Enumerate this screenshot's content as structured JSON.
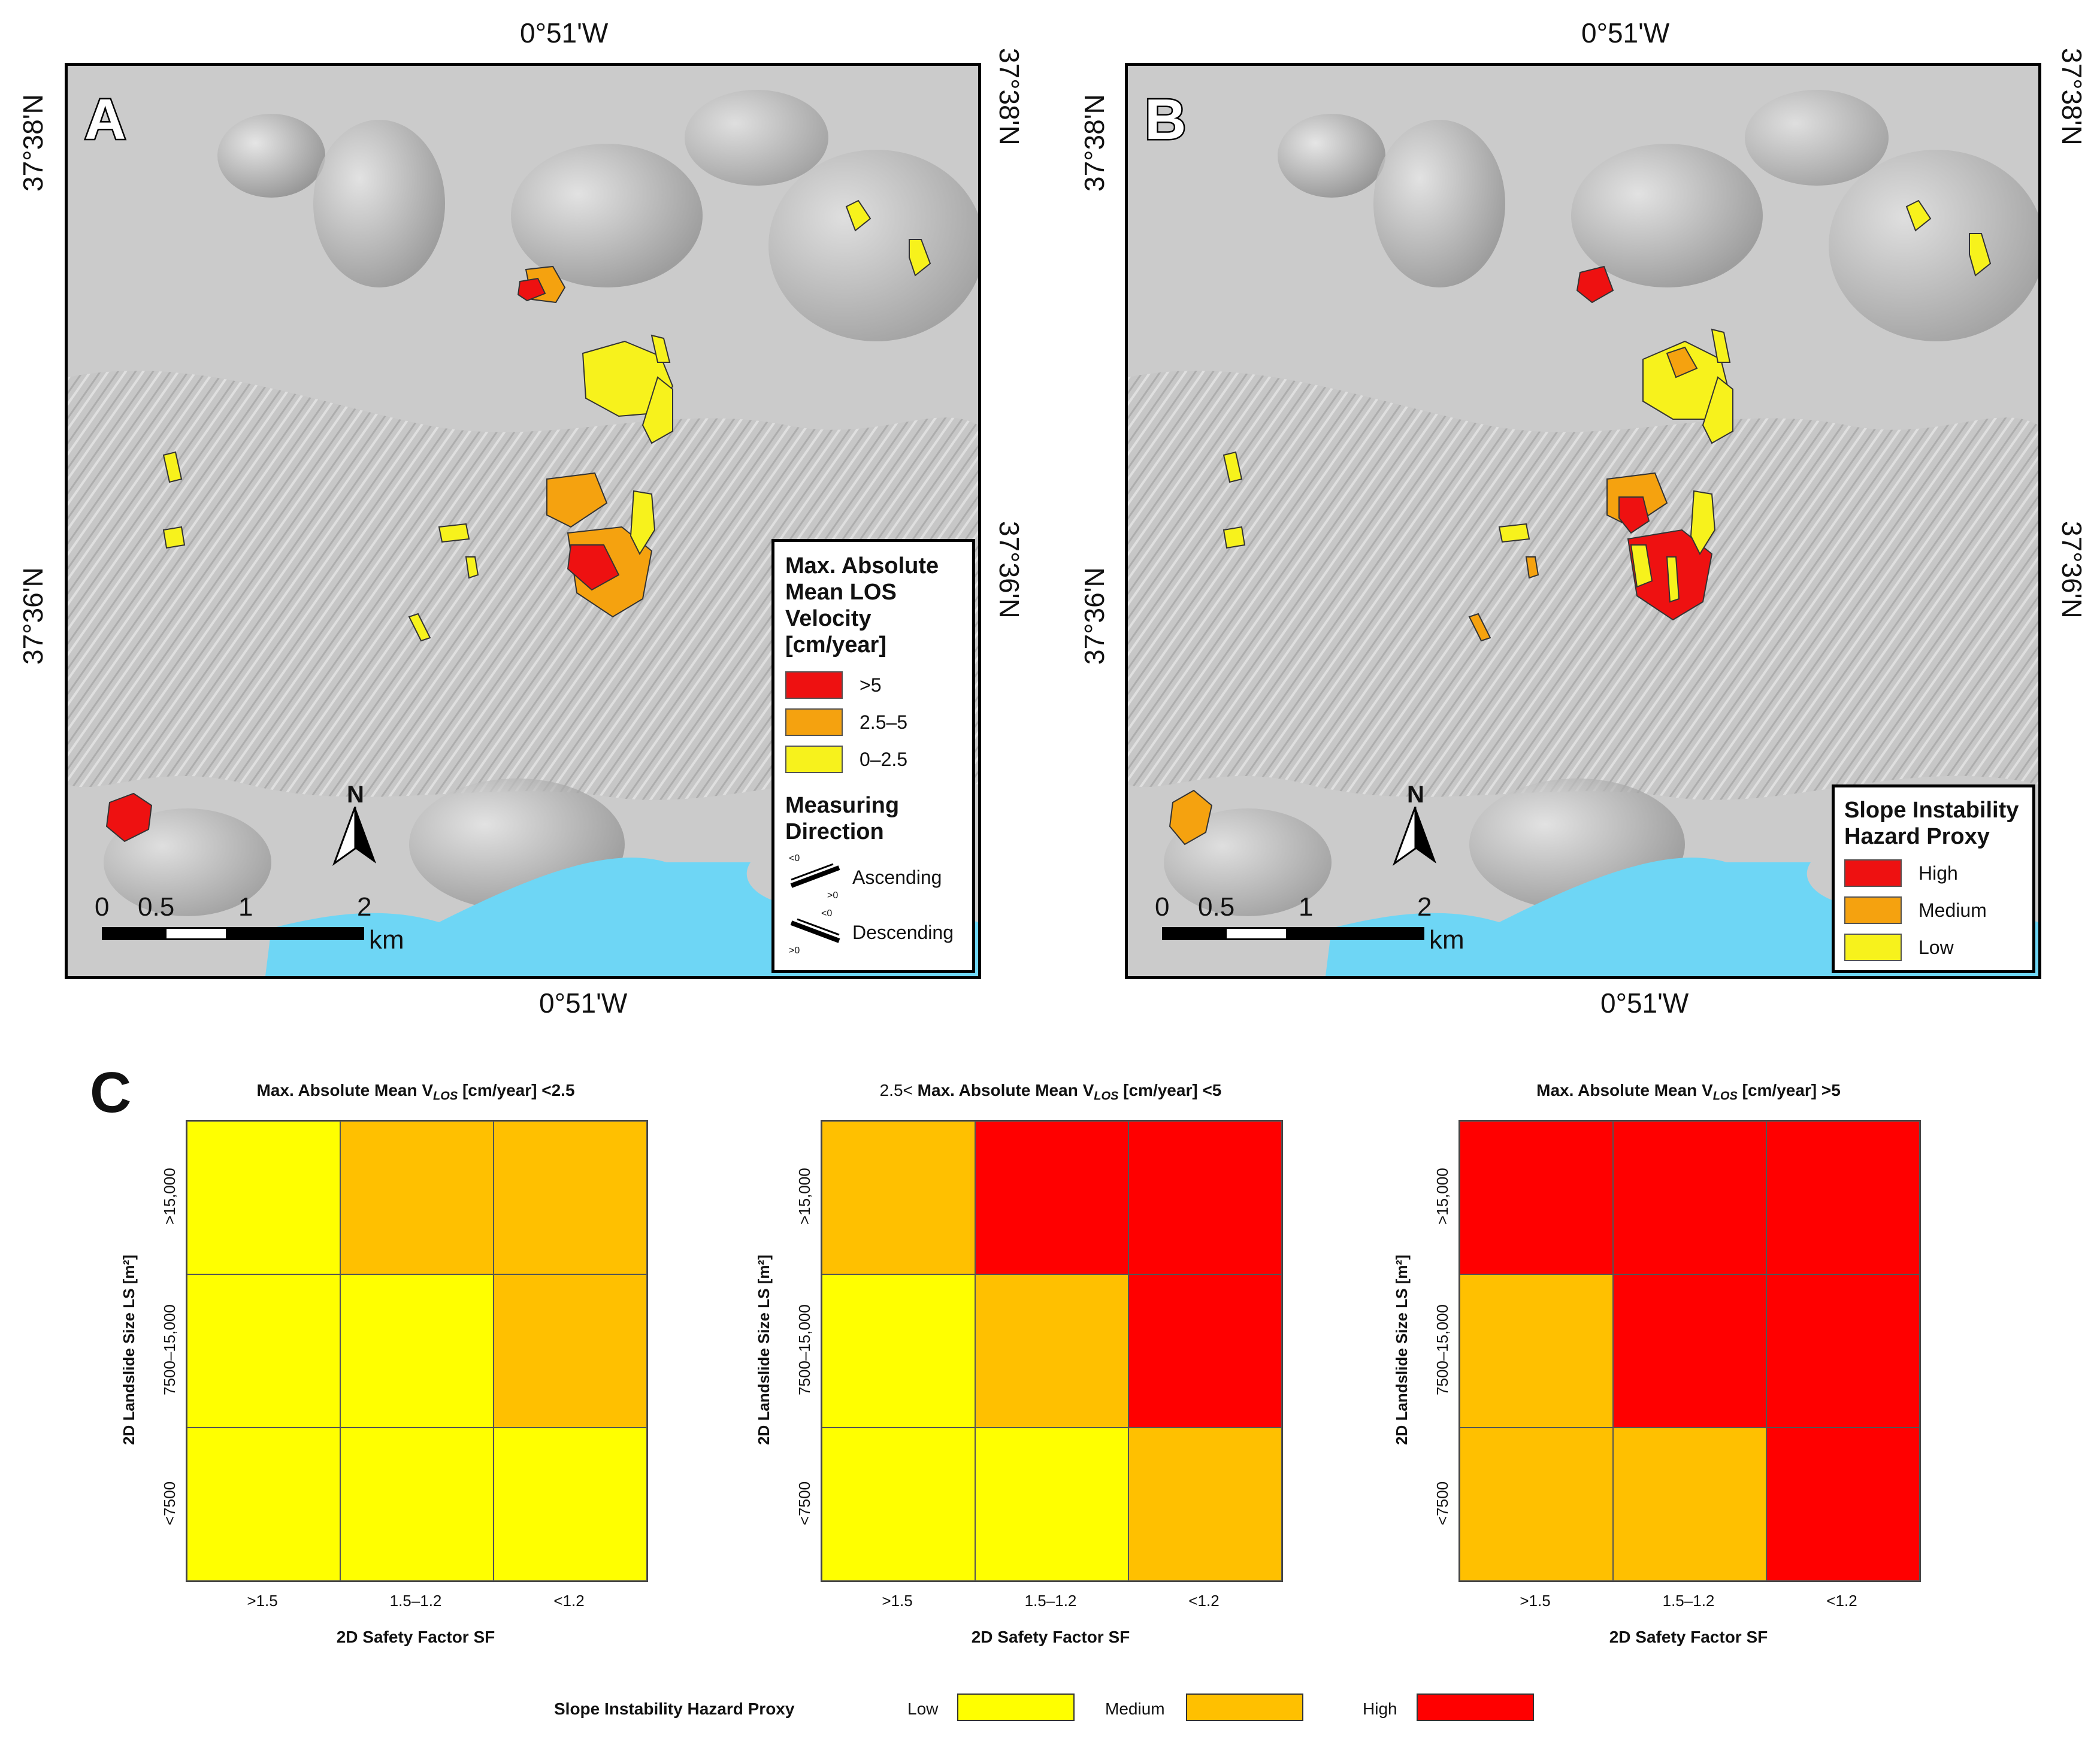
{
  "panels": {
    "a": {
      "letter": "A",
      "top_lon": "0°51'W",
      "bottom_lon": "0°51'W",
      "left_lat_top": "37°38'N",
      "left_lat_mid": "37°36'N",
      "right_lat_top": "37°38'N",
      "right_lat_mid": "37°36'N",
      "legend": {
        "title": "Max. Absolute Mean LOS Velocity [cm/year]",
        "items": [
          {
            "label": ">5",
            "color": "#ee1111"
          },
          {
            "label": "2.5–5",
            "color": "#f5a20f"
          },
          {
            "label": "0–2.5",
            "color": "#f7f21c"
          }
        ],
        "direction_title": "Measuring Direction",
        "directions": [
          {
            "label": "Ascending",
            "small_top": "<0",
            "small_bottom": ">0"
          },
          {
            "label": "Descending",
            "small_top": "<0",
            "small_bottom": ">0"
          }
        ]
      },
      "scale": {
        "ticks": [
          "0",
          "0.5",
          "1",
          "2"
        ],
        "unit": "km"
      },
      "north": "N"
    },
    "b": {
      "letter": "B",
      "top_lon": "0°51'W",
      "bottom_lon": "0°51'W",
      "left_lat_top": "37°38'N",
      "left_lat_mid": "37°36'N",
      "right_lat_top": "37°38'N",
      "right_lat_mid": "37°36'N",
      "legend": {
        "title": "Slope Instability Hazard Proxy",
        "items": [
          {
            "label": "High",
            "color": "#ee1111"
          },
          {
            "label": "Medium",
            "color": "#f5a20f"
          },
          {
            "label": "Low",
            "color": "#f7f21c"
          }
        ]
      },
      "scale": {
        "ticks": [
          "0",
          "0.5",
          "1",
          "2"
        ],
        "unit": "km"
      },
      "north": "N"
    },
    "c": {
      "letter": "C",
      "colors": {
        "Low": "#ffff00",
        "Medium": "#ffc000",
        "High": "#ff0000"
      },
      "matrices": [
        {
          "title_pre": "",
          "title_bold": "Max. Absolute Mean V",
          "title_sub": "LOS",
          "title_post": " [cm/year] <2.5",
          "ylabel": "2D Landslide Size LS [m²]",
          "yticks": [
            ">15,000",
            "7500–15,000",
            "<7500"
          ],
          "xticks": [
            ">1.5",
            "1.5–1.2",
            "<1.2"
          ],
          "xlabel": "2D Safety Factor SF",
          "grid": [
            [
              "Low",
              "Medium",
              "Medium"
            ],
            [
              "Low",
              "Low",
              "Medium"
            ],
            [
              "Low",
              "Low",
              "Low"
            ]
          ]
        },
        {
          "title_pre": "2.5< ",
          "title_bold": "Max. Absolute Mean V",
          "title_sub": "LOS",
          "title_post": " [cm/year] <5",
          "ylabel": "2D Landslide Size LS [m²]",
          "yticks": [
            ">15,000",
            "7500–15,000",
            "<7500"
          ],
          "xticks": [
            ">1.5",
            "1.5–1.2",
            "<1.2"
          ],
          "xlabel": "2D Safety Factor SF",
          "grid": [
            [
              "Medium",
              "High",
              "High"
            ],
            [
              "Low",
              "Medium",
              "High"
            ],
            [
              "Low",
              "Low",
              "Medium"
            ]
          ]
        },
        {
          "title_pre": "",
          "title_bold": "Max. Absolute Mean V",
          "title_sub": "LOS",
          "title_post": " [cm/year] >5",
          "ylabel": "2D Landslide Size LS [m²]",
          "yticks": [
            ">15,000",
            "7500–15,000",
            "<7500"
          ],
          "xticks": [
            ">1.5",
            "1.5–1.2",
            "<1.2"
          ],
          "xlabel": "2D Safety Factor SF",
          "grid": [
            [
              "High",
              "High",
              "High"
            ],
            [
              "Medium",
              "High",
              "High"
            ],
            [
              "Medium",
              "Medium",
              "High"
            ]
          ]
        }
      ],
      "legend": {
        "title": "Slope Instability Hazard Proxy",
        "items": [
          {
            "label": "Low",
            "color": "#ffff00"
          },
          {
            "label": "Medium",
            "color": "#ffc000"
          },
          {
            "label": "High",
            "color": "#ff0000"
          }
        ]
      }
    }
  }
}
